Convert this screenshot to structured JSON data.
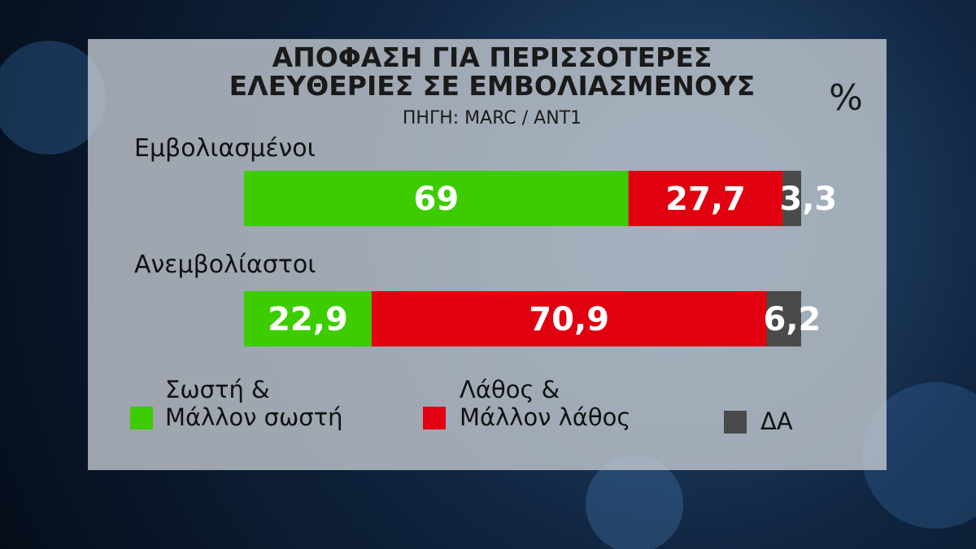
{
  "chart_data": {
    "type": "stacked-bar",
    "title": [
      "ΑΠΟΦΑΣΗ ΓΙΑ ΠΕΡΙΣΣΟΤΕΡΕΣ",
      "ΕΛΕΥΘΕΡΙΕΣ ΣΕ ΕΜΒΟΛΙΑΣΜΕΝΟΥΣ"
    ],
    "subtitle": "ΠΗΓΗ: MARC / ANT1",
    "unit": "%",
    "categories": [
      "Εμβολιασμένοι",
      "Ανεμβολίαστοι"
    ],
    "xlim": [
      0,
      100
    ],
    "series": [
      {
        "name": "Σωστή &\nΜάλλον σωστή",
        "color": "#3ccc00",
        "values": [
          69,
          22.9
        ],
        "value_labels": [
          "69",
          "22,9"
        ]
      },
      {
        "name": "Λάθος &\nΜάλλον λάθος",
        "color": "#e0000f",
        "values": [
          27.7,
          70.9
        ],
        "value_labels": [
          "27,7",
          "70,9"
        ]
      },
      {
        "name": "ΔΑ",
        "color": "#4a4a4a",
        "values": [
          3.3,
          6.2
        ],
        "value_labels": [
          "3,3",
          "6,2"
        ]
      }
    ]
  }
}
